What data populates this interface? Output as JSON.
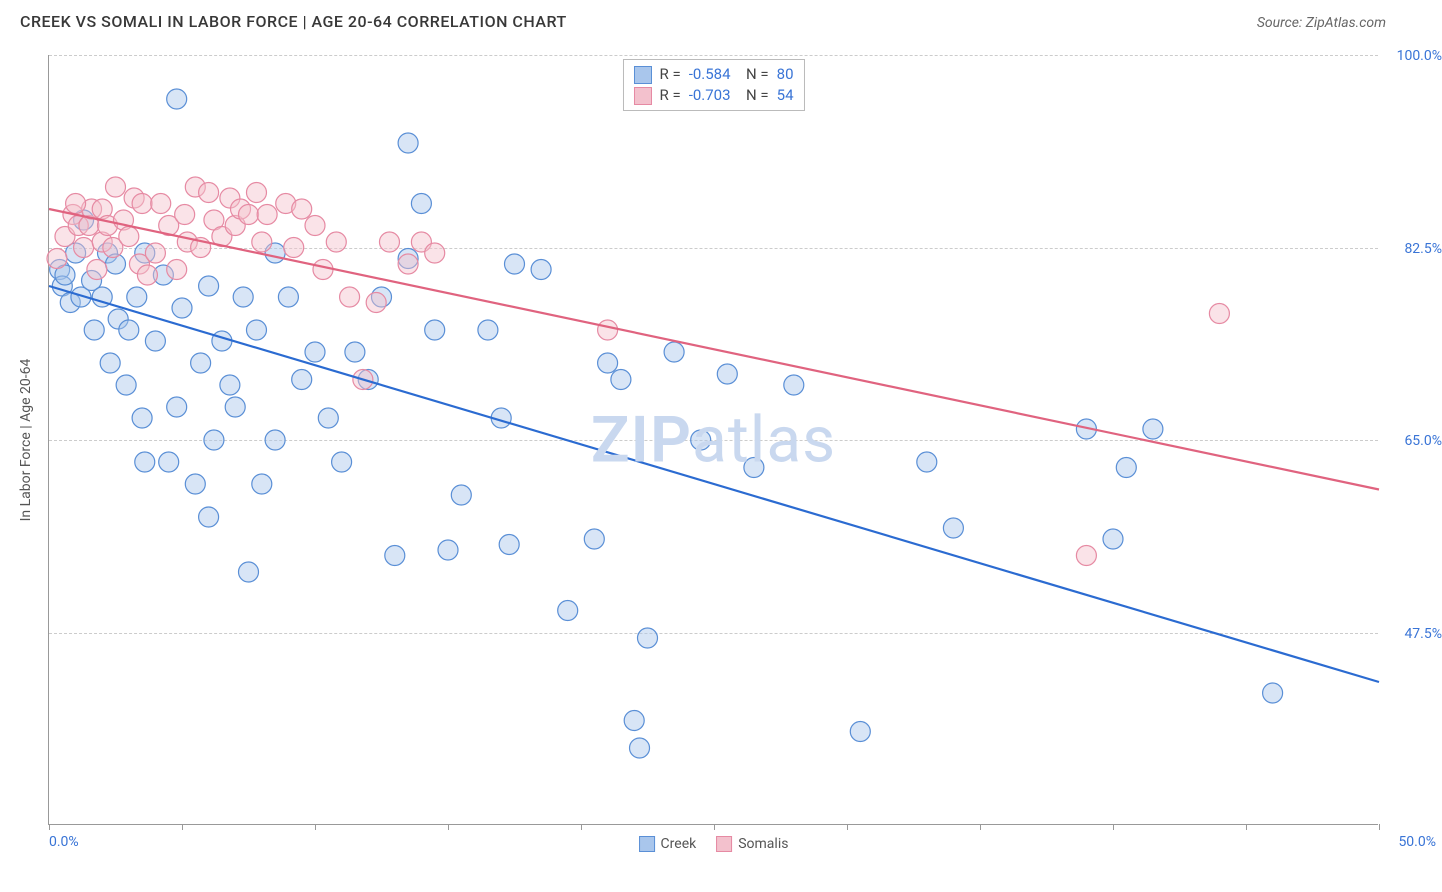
{
  "header": {
    "title": "CREEK VS SOMALI IN LABOR FORCE | AGE 20-64 CORRELATION CHART",
    "source": "Source: ZipAtlas.com"
  },
  "chart": {
    "type": "scatter",
    "yaxis_title": "In Labor Force | Age 20-64",
    "background_color": "#ffffff",
    "grid_color": "#cccccc",
    "text_color": "#3974d6",
    "xlim": [
      0,
      50
    ],
    "ylim": [
      30,
      100
    ],
    "x_label_min": "0.0%",
    "x_label_max": "50.0%",
    "x_ticks": [
      0,
      5,
      10,
      15,
      20,
      25,
      30,
      35,
      40,
      45,
      50
    ],
    "y_grid": [
      {
        "v": 100.0,
        "label": "100.0%"
      },
      {
        "v": 82.5,
        "label": "82.5%"
      },
      {
        "v": 65.0,
        "label": "65.0%"
      },
      {
        "v": 47.5,
        "label": "47.5%"
      }
    ],
    "marker_radius": 10,
    "marker_opacity": 0.45,
    "line_width": 2.2,
    "series": [
      {
        "name": "Creek",
        "color_fill": "#a9c6ec",
        "color_stroke": "#5a8fd6",
        "line_color": "#2b6bd1",
        "R": "-0.584",
        "N": "80",
        "trend": {
          "x1": 0,
          "y1": 79.0,
          "x2": 50,
          "y2": 43.0
        },
        "points": [
          [
            0.4,
            80.5
          ],
          [
            0.5,
            79.0
          ],
          [
            0.6,
            80.0
          ],
          [
            0.8,
            77.5
          ],
          [
            1.0,
            82.0
          ],
          [
            1.2,
            78.0
          ],
          [
            1.3,
            85.0
          ],
          [
            1.6,
            79.5
          ],
          [
            1.7,
            75.0
          ],
          [
            2.0,
            78.0
          ],
          [
            2.2,
            82.0
          ],
          [
            2.3,
            72.0
          ],
          [
            2.5,
            81.0
          ],
          [
            2.6,
            76.0
          ],
          [
            2.9,
            70.0
          ],
          [
            3.0,
            75.0
          ],
          [
            3.3,
            78.0
          ],
          [
            3.5,
            67.0
          ],
          [
            3.6,
            82.0
          ],
          [
            3.6,
            63.0
          ],
          [
            4.0,
            74.0
          ],
          [
            4.3,
            80.0
          ],
          [
            4.5,
            63.0
          ],
          [
            4.8,
            68.0
          ],
          [
            4.8,
            96.0
          ],
          [
            5.0,
            77.0
          ],
          [
            5.5,
            61.0
          ],
          [
            5.7,
            72.0
          ],
          [
            6.0,
            79.0
          ],
          [
            6.2,
            65.0
          ],
          [
            6.5,
            74.0
          ],
          [
            6.8,
            70.0
          ],
          [
            7.0,
            68.0
          ],
          [
            7.3,
            78.0
          ],
          [
            7.5,
            53.0
          ],
          [
            7.8,
            75.0
          ],
          [
            8.0,
            61.0
          ],
          [
            8.5,
            82.0
          ],
          [
            8.5,
            65.0
          ],
          [
            9.0,
            78.0
          ],
          [
            9.5,
            70.5
          ],
          [
            10.0,
            73.0
          ],
          [
            10.5,
            67.0
          ],
          [
            11.0,
            63.0
          ],
          [
            11.5,
            73.0
          ],
          [
            12.0,
            70.5
          ],
          [
            12.5,
            78.0
          ],
          [
            13.0,
            54.5
          ],
          [
            13.5,
            81.5
          ],
          [
            13.5,
            92.0
          ],
          [
            14.0,
            86.5
          ],
          [
            14.5,
            75.0
          ],
          [
            15.5,
            60.0
          ],
          [
            16.5,
            75.0
          ],
          [
            17.0,
            67.0
          ],
          [
            17.3,
            55.5
          ],
          [
            17.5,
            81.0
          ],
          [
            18.5,
            80.5
          ],
          [
            19.5,
            49.5
          ],
          [
            20.5,
            56.0
          ],
          [
            21.0,
            72.0
          ],
          [
            21.5,
            70.5
          ],
          [
            22.0,
            39.5
          ],
          [
            22.2,
            37.0
          ],
          [
            22.5,
            47.0
          ],
          [
            23.5,
            73.0
          ],
          [
            24.5,
            65.0
          ],
          [
            25.5,
            71.0
          ],
          [
            26.5,
            62.5
          ],
          [
            28.0,
            70.0
          ],
          [
            30.5,
            38.5
          ],
          [
            33.0,
            63.0
          ],
          [
            34.0,
            57.0
          ],
          [
            39.0,
            66.0
          ],
          [
            40.0,
            56.0
          ],
          [
            41.5,
            66.0
          ],
          [
            46.0,
            42.0
          ],
          [
            40.5,
            62.5
          ],
          [
            6.0,
            58.0
          ],
          [
            15.0,
            55.0
          ]
        ]
      },
      {
        "name": "Somalis",
        "color_fill": "#f3c1cd",
        "color_stroke": "#e68aa3",
        "line_color": "#e0637f",
        "R": "-0.703",
        "N": "54",
        "trend": {
          "x1": 0,
          "y1": 86.0,
          "x2": 50,
          "y2": 60.5
        },
        "points": [
          [
            0.3,
            81.5
          ],
          [
            0.6,
            83.5
          ],
          [
            0.9,
            85.5
          ],
          [
            1.1,
            84.5
          ],
          [
            1.3,
            82.5
          ],
          [
            1.5,
            84.5
          ],
          [
            1.6,
            86.0
          ],
          [
            1.8,
            80.5
          ],
          [
            2.0,
            86.0
          ],
          [
            2.0,
            83.0
          ],
          [
            2.2,
            84.5
          ],
          [
            2.4,
            82.5
          ],
          [
            2.5,
            88.0
          ],
          [
            2.8,
            85.0
          ],
          [
            3.0,
            83.5
          ],
          [
            3.2,
            87.0
          ],
          [
            3.4,
            81.0
          ],
          [
            3.5,
            86.5
          ],
          [
            3.7,
            80.0
          ],
          [
            4.0,
            82.0
          ],
          [
            4.2,
            86.5
          ],
          [
            4.5,
            84.5
          ],
          [
            4.8,
            80.5
          ],
          [
            5.1,
            85.5
          ],
          [
            5.2,
            83.0
          ],
          [
            5.5,
            88.0
          ],
          [
            5.7,
            82.5
          ],
          [
            6.2,
            85.0
          ],
          [
            6.5,
            83.5
          ],
          [
            6.8,
            87.0
          ],
          [
            7.0,
            84.5
          ],
          [
            7.2,
            86.0
          ],
          [
            7.5,
            85.5
          ],
          [
            7.8,
            87.5
          ],
          [
            8.0,
            83.0
          ],
          [
            8.2,
            85.5
          ],
          [
            8.9,
            86.5
          ],
          [
            9.2,
            82.5
          ],
          [
            9.5,
            86.0
          ],
          [
            10.0,
            84.5
          ],
          [
            10.3,
            80.5
          ],
          [
            10.8,
            83.0
          ],
          [
            11.3,
            78.0
          ],
          [
            11.8,
            70.5
          ],
          [
            12.3,
            77.5
          ],
          [
            12.8,
            83.0
          ],
          [
            13.5,
            81.0
          ],
          [
            14.0,
            83.0
          ],
          [
            14.5,
            82.0
          ],
          [
            21.0,
            75.0
          ],
          [
            39.0,
            54.5
          ],
          [
            44.0,
            76.5
          ],
          [
            6.0,
            87.5
          ],
          [
            1.0,
            86.5
          ]
        ]
      }
    ],
    "watermark": {
      "bold": "ZIP",
      "light": "atlas"
    },
    "bottom_legend": [
      {
        "label": "Creek",
        "fill": "#a9c6ec",
        "stroke": "#5a8fd6"
      },
      {
        "label": "Somalis",
        "fill": "#f3c1cd",
        "stroke": "#e68aa3"
      }
    ]
  }
}
